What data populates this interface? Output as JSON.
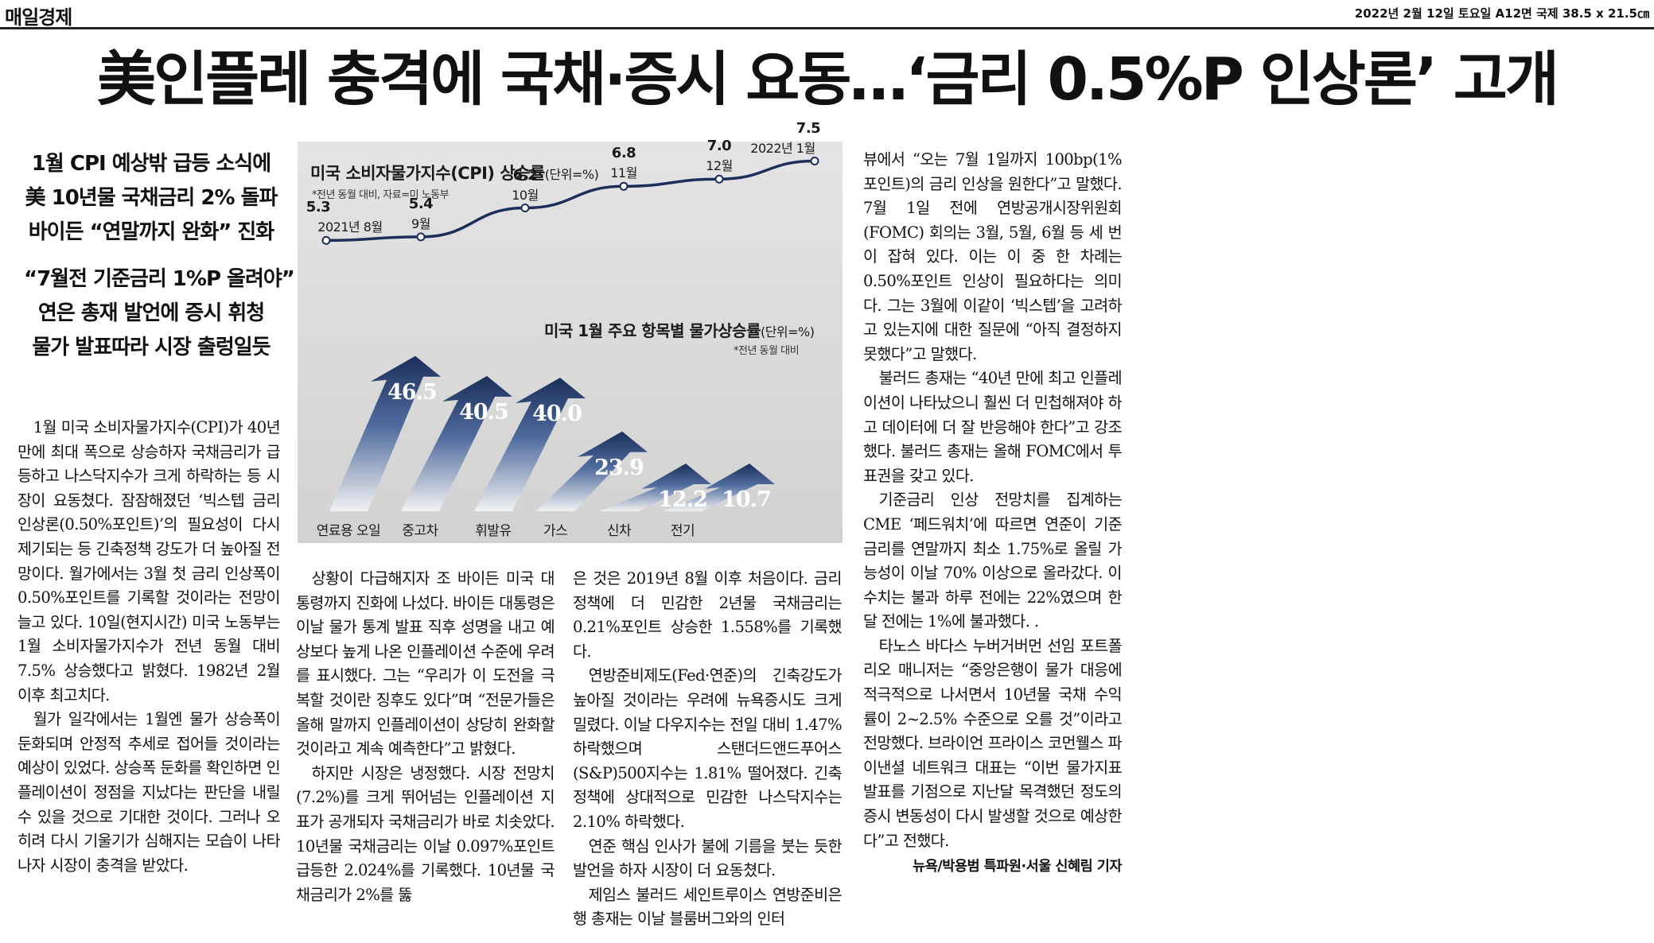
{
  "masthead": {
    "logo": "매일경제",
    "dateline": "2022년 2월 12일 토요일 A12면 국제 38.5 x 21.5㎝"
  },
  "headline": "美인플레 충격에 국채·증시 요동…‘금리 0.5%P 인상론’ 고개",
  "subheads": [
    "1월 CPI 예상밖 급등 소식에",
    "美 10년물 국채금리 2% 돌파",
    "바이든 “연말까지 완화” 진화",
    "“7월전 기준금리 1%P 올려야”",
    "연은 총재 발언에 증시 휘청",
    "물가 발표따라 시장 출렁일듯"
  ],
  "article": {
    "col_a": [
      "1월 미국 소비자물가지수(CPI)가 40년 만에 최대 폭으로 상승하자 국채금리가 급등하고 나스닥지수가 크게 하락하는 등 시장이 요동쳤다. 잠잠해졌던 ‘빅스텝 금리 인상론(0.50%포인트)’의 필요성이 다시 제기되는 등 긴축정책 강도가 더 높아질 전망이다. 월가에서는 3월 첫 금리 인상폭이 0.50%포인트를 기록할 것이라는 전망이 늘고 있다. 10일(현지시간) 미국 노동부는 1월 소비자물가지수가 전년 동월 대비 7.5% 상승했다고 밝혔다. 1982년 2월 이후 최고치다.",
      "월가 일각에서는 1월엔 물가 상승폭이 둔화되며 안정적 추세로 접어들 것이라는 예상이 있었다. 상승폭 둔화를 확인하면 인플레이션이 정점을 지났다는 판단을 내릴 수 있을 것으로 기대한 것이다. 그러나 오히려 다시 기울기가 심해지는 모습이 나타나자 시장이 충격을 받았다."
    ],
    "col_b": [
      "상황이 다급해지자 조 바이든 미국 대통령까지 진화에 나섰다. 바이든 대통령은 이날 물가 통계 발표 직후 성명을 내고 예상보다 높게 나온 인플레이션 수준에 우려를 표시했다. 그는 “우리가 이 도전을 극복할 것이란 징후도 있다”며 “전문가들은 올해 말까지 인플레이션이 상당히 완화할 것이라고 계속 예측한다”고 밝혔다.",
      "하지만 시장은 냉정했다. 시장 전망치(7.2%)를 크게 뛰어넘는 인플레이션 지표가 공개되자 국채금리가 바로 치솟았다. 10년물 국채금리는 이날 0.097%포인트 급등한 2.024%를 기록했다. 10년물 국채금리가 2%를 뚫"
    ],
    "col_c": [
      "은 것은 2019년 8월 이후 처음이다. 금리 정책에 더 민감한 2년물 국채금리는 0.21%포인트 상승한 1.558%를 기록했다.",
      "연방준비제도(Fed·연준)의 긴축강도가 높아질 것이라는 우려에 뉴욕증시도 크게 밀렸다. 이날 다우지수는 전일 대비 1.47% 하락했으며 스탠더드앤드푸어스(S&P)500지수는 1.81% 떨어졌다. 긴축정책에 상대적으로 민감한 나스닥지수는 2.10% 하락했다.",
      "연준 핵심 인사가 불에 기름을 붓는 듯한 발언을 하자 시장이 더 요동쳤다.",
      "제임스 불러드 세인트루이스 연방준비은행 총재는 이날 블룸버그와의 인터"
    ],
    "col_d": [
      "뷰에서 “오는 7월 1일까지 100bp(1%포인트)의 금리 인상을 원한다”고 말했다. 7월 1일 전에 연방공개시장위원회(FOMC) 회의는 3월, 5월, 6월 등 세 번이 잡혀 있다. 이는 이 중 한 차례는 0.50%포인트 인상이 필요하다는 의미다. 그는 3월에 이같이 ‘빅스텝’을 고려하고 있는지에 대한 질문에 “아직 결정하지 못했다”고 말했다.",
      "불러드 총재는 “40년 만에 최고 인플레이션이 나타났으니 훨씬 더 민첩해져야 하고 데이터에 더 잘 반응해야 한다”고 강조했다. 불러드 총재는 올해 FOMC에서 투표권을 갖고 있다.",
      "기준금리 인상 전망치를 집계하는 CME ‘페드워치’에 따르면 연준이 기준금리를 연말까지 최소 1.75%로 올릴 가능성이 이날 70% 이상으로 올라갔다. 이 수치는 불과 하루 전에는 22%였으며 한 달 전에는 1%에 불과했다. .",
      "타노스 바다스 누버거버먼 선임 포트폴리오 매니저는 “중앙은행이 물가 대응에 적극적으로 나서면서 10년물 국채 수익률이 2~2.5% 수준으로 오를 것”이라고 전망했다. 브라이언 프라이스 코먼웰스 파이낸셜 네트워크 대표는 “이번 물가지표 발표를 기점으로 지난달 목격했던 정도의 증시 변동성이 다시 발생할 것으로 예상한다”고 전했다."
    ],
    "byline": "뉴욕/박용범 특파원·서울 신혜림 기자"
  },
  "colors": {
    "navy": "#1c2f5a",
    "panel": "#dcdcdc"
  },
  "chart_data": [
    {
      "type": "line",
      "title": "미국 소비자물가지수(CPI) 상승률",
      "unit": "(단위=%)",
      "note": "*전년 동월 대비, 자료=미 노동부",
      "categories": [
        "2021년 8월",
        "9월",
        "10월",
        "11월",
        "12월",
        "2022년 1월"
      ],
      "values": [
        5.3,
        5.4,
        6.2,
        6.8,
        7.0,
        7.5
      ],
      "value_labels": [
        "5.3",
        "5.4",
        "6.2",
        "6.8",
        "7.0",
        "7.5"
      ]
    },
    {
      "type": "bar",
      "title": "미국 1월 주요 항목별 물가상승률",
      "unit": "(단위=%)",
      "note": "*전년 동월 대비",
      "categories": [
        "연료용 오일",
        "중고차",
        "휘발유",
        "가스",
        "신차",
        "전기"
      ],
      "values": [
        46.5,
        40.5,
        40.0,
        23.9,
        12.2,
        10.7
      ],
      "value_labels": [
        "46.5",
        "40.5",
        "40.0",
        "23.9",
        "12.2",
        "10.7"
      ]
    }
  ]
}
